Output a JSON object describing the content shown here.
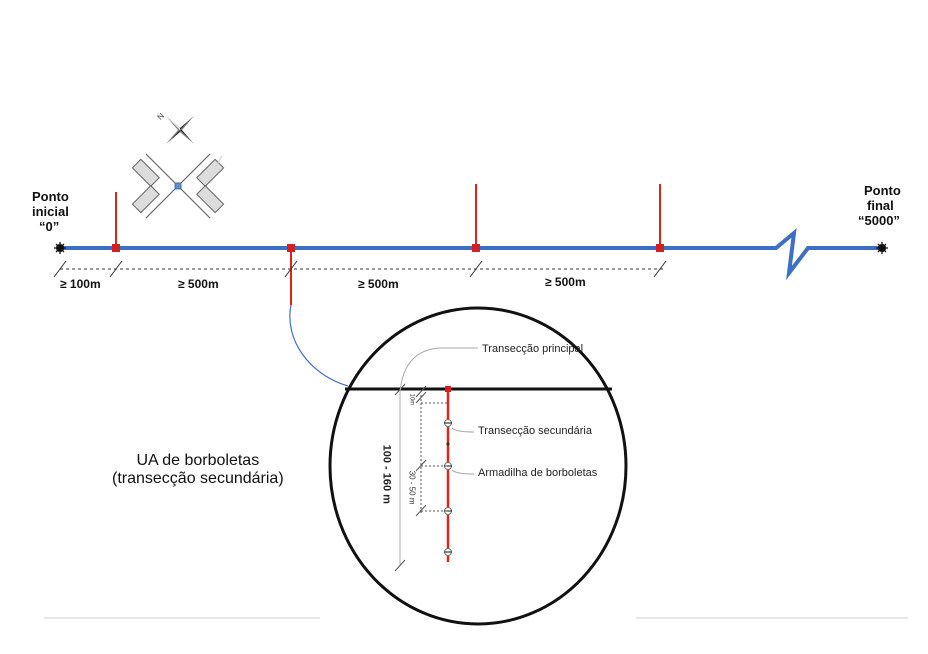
{
  "start_point": {
    "line1": "Ponto",
    "line2": "inicial",
    "line3": "“0”"
  },
  "end_point": {
    "line1": "Ponto",
    "line2": "final",
    "line3": "“5000”"
  },
  "distances": {
    "first": "≥ 100m",
    "second": "≥ 500m",
    "third": "≥ 500m",
    "fourth": "≥ 500m"
  },
  "compass": {
    "north": "N"
  },
  "callouts": {
    "main_transect": "Transecção principal",
    "secondary_transect": "Transecção secundária",
    "butterfly_trap": "Armadilha de borboletas"
  },
  "measurements": {
    "total_length": "100 - 160 m",
    "trap_spacing": "30 - 50 m",
    "first_gap": "10m"
  },
  "unit_label": {
    "line1": "UA de borboletas",
    "line2": "(transecção secundária)"
  },
  "colors": {
    "main_line": "#3d6fc8",
    "secondary_line": "#e0231c",
    "marker": "#d42020",
    "panel": "#5f8fd0"
  }
}
